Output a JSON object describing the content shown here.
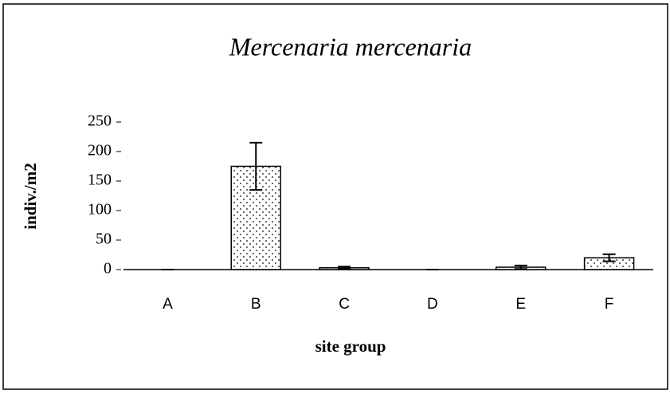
{
  "chart_data": {
    "type": "bar",
    "title": "Mercenaria mercenaria",
    "x_label": "site group",
    "y_label": "indiv./m2",
    "categories": [
      "A",
      "B",
      "C",
      "D",
      "E",
      "F"
    ],
    "values": [
      0,
      175,
      3,
      0,
      4,
      20
    ],
    "errors": [
      0,
      40,
      2,
      0,
      3,
      6
    ],
    "color": "#ffffff",
    "ylim": [
      0,
      250
    ],
    "yticks": [
      0,
      50,
      100,
      150,
      200,
      250
    ],
    "grid": false
  }
}
